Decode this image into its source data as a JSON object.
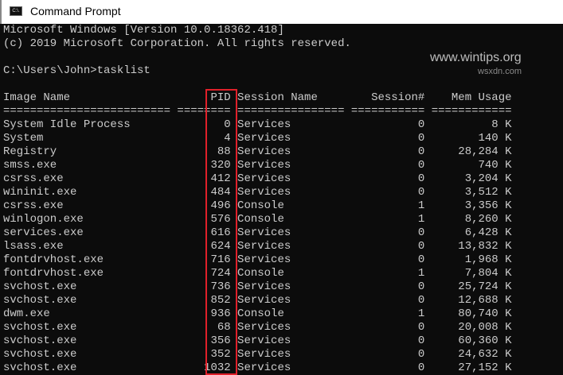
{
  "window": {
    "title": "Command Prompt",
    "icon": "cmd-icon",
    "icon_text": "C:\\."
  },
  "console": {
    "banner": [
      "Microsoft Windows [Version 10.0.18362.418]",
      "(c) 2019 Microsoft Corporation. All rights reserved."
    ],
    "prompt": "C:\\Users\\John>tasklist",
    "columns": [
      "Image Name",
      "PID",
      "Session Name",
      "Session#",
      "Mem Usage"
    ],
    "rows": [
      [
        "System Idle Process",
        "0",
        "Services",
        "0",
        "8 K"
      ],
      [
        "System",
        "4",
        "Services",
        "0",
        "140 K"
      ],
      [
        "Registry",
        "88",
        "Services",
        "0",
        "28,284 K"
      ],
      [
        "smss.exe",
        "320",
        "Services",
        "0",
        "740 K"
      ],
      [
        "csrss.exe",
        "412",
        "Services",
        "0",
        "3,204 K"
      ],
      [
        "wininit.exe",
        "484",
        "Services",
        "0",
        "3,512 K"
      ],
      [
        "csrss.exe",
        "496",
        "Console",
        "1",
        "3,356 K"
      ],
      [
        "winlogon.exe",
        "576",
        "Console",
        "1",
        "8,260 K"
      ],
      [
        "services.exe",
        "616",
        "Services",
        "0",
        "6,428 K"
      ],
      [
        "lsass.exe",
        "624",
        "Services",
        "0",
        "13,832 K"
      ],
      [
        "fontdrvhost.exe",
        "716",
        "Services",
        "0",
        "1,968 K"
      ],
      [
        "fontdrvhost.exe",
        "724",
        "Console",
        "1",
        "7,804 K"
      ],
      [
        "svchost.exe",
        "736",
        "Services",
        "0",
        "25,724 K"
      ],
      [
        "svchost.exe",
        "852",
        "Services",
        "0",
        "12,688 K"
      ],
      [
        "dwm.exe",
        "936",
        "Console",
        "1",
        "80,740 K"
      ],
      [
        "svchost.exe",
        "68",
        "Services",
        "0",
        "20,008 K"
      ],
      [
        "svchost.exe",
        "356",
        "Services",
        "0",
        "60,360 K"
      ],
      [
        "svchost.exe",
        "352",
        "Services",
        "0",
        "24,632 K"
      ],
      [
        "svchost.exe",
        "1032",
        "Services",
        "0",
        "27,152 K"
      ]
    ]
  },
  "highlight_color": "#e0202a",
  "watermark": "www.wintips.org",
  "corner_watermark": "wsxdn.com"
}
